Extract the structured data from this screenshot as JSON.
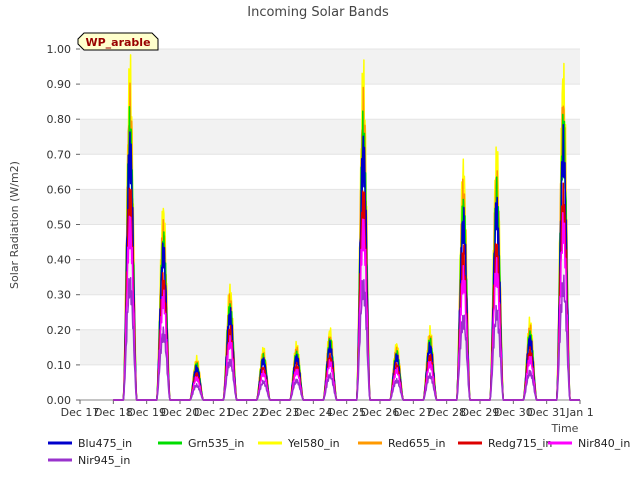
{
  "chart_data": {
    "type": "line",
    "title": "Incoming Solar Bands",
    "xlabel": "Time",
    "ylabel": "Solar Radiation (W/m2)",
    "site_badge": "WP_arable",
    "ylim": [
      0,
      1
    ],
    "y_ticks": [
      "0.00",
      "0.10",
      "0.20",
      "0.30",
      "0.40",
      "0.50",
      "0.60",
      "0.70",
      "0.80",
      "0.90",
      "1.00"
    ],
    "x_ticks": [
      "Dec 17",
      "Dec 18",
      "Dec 19",
      "Dec 20",
      "Dec 21",
      "Dec 22",
      "Dec 23",
      "Dec 24",
      "Dec 25",
      "Dec 26",
      "Dec 27",
      "Dec 28",
      "Dec 29",
      "Dec 30",
      "Dec 31",
      "Jan 1"
    ],
    "grid": "horizontal-bands",
    "legend_position": "bottom",
    "day_peaks": [
      0.71,
      0.41,
      0.09,
      0.24,
      0.11,
      0.12,
      0.15,
      0.7,
      0.12,
      0.15,
      0.5,
      0.53,
      0.17,
      0.7
    ],
    "series": [
      {
        "name": "Blu475_in",
        "color": "#0000cc",
        "scale": 1.0
      },
      {
        "name": "Grn535_in",
        "color": "#00dd00",
        "scale": 1.07
      },
      {
        "name": "Yel580_in",
        "color": "#ffff00",
        "scale": 1.26
      },
      {
        "name": "Red655_in",
        "color": "#ff9900",
        "scale": 1.14
      },
      {
        "name": "Redg715_in",
        "color": "#dd0000",
        "scale": 0.8
      },
      {
        "name": "Nir840_in",
        "color": "#ff00ff",
        "scale": 0.69
      },
      {
        "name": "Nir945_in",
        "color": "#9933cc",
        "scale": 0.46
      }
    ]
  }
}
